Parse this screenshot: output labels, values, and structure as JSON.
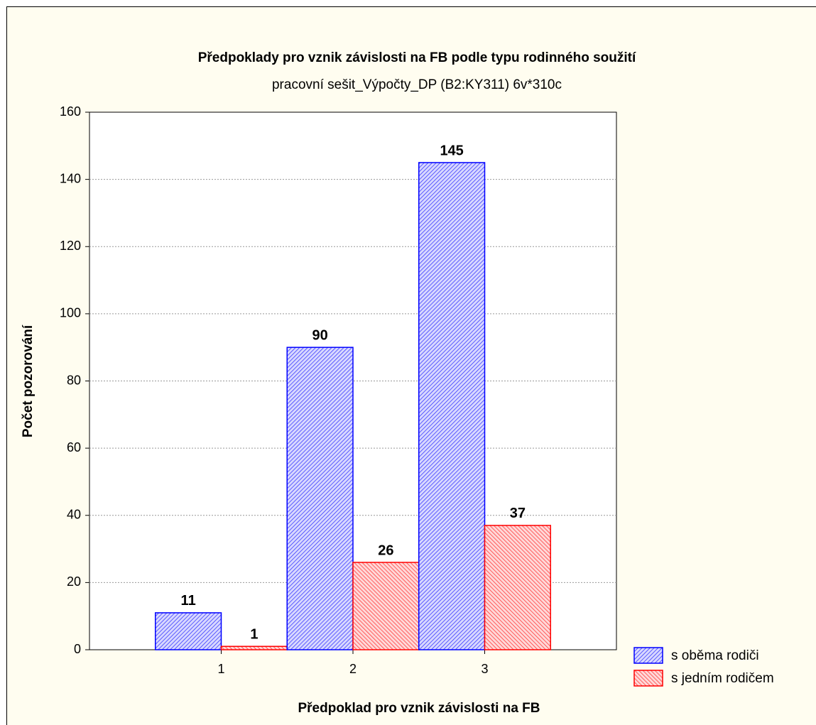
{
  "chart_data": {
    "type": "bar",
    "title": "Předpoklady pro vznik závislosti na FB podle typu rodinného soužití",
    "subtitle": "pracovní sešit_Výpočty_DP (B2:KY311) 6v*310c",
    "x_label": "Předpoklad pro vznik závislosti na FB",
    "y_label": "Počet pozorování",
    "categories": [
      "1",
      "2",
      "3"
    ],
    "series": [
      {
        "name": "s oběma rodiči",
        "color": "#0000ff",
        "values": [
          11,
          90,
          145
        ]
      },
      {
        "name": "s jedním rodičem",
        "color": "#ff0000",
        "values": [
          1,
          26,
          37
        ]
      }
    ],
    "ylim": [
      0,
      160
    ],
    "yticks": [
      0,
      20,
      40,
      60,
      80,
      100,
      120,
      140,
      160
    ],
    "grid": true
  }
}
